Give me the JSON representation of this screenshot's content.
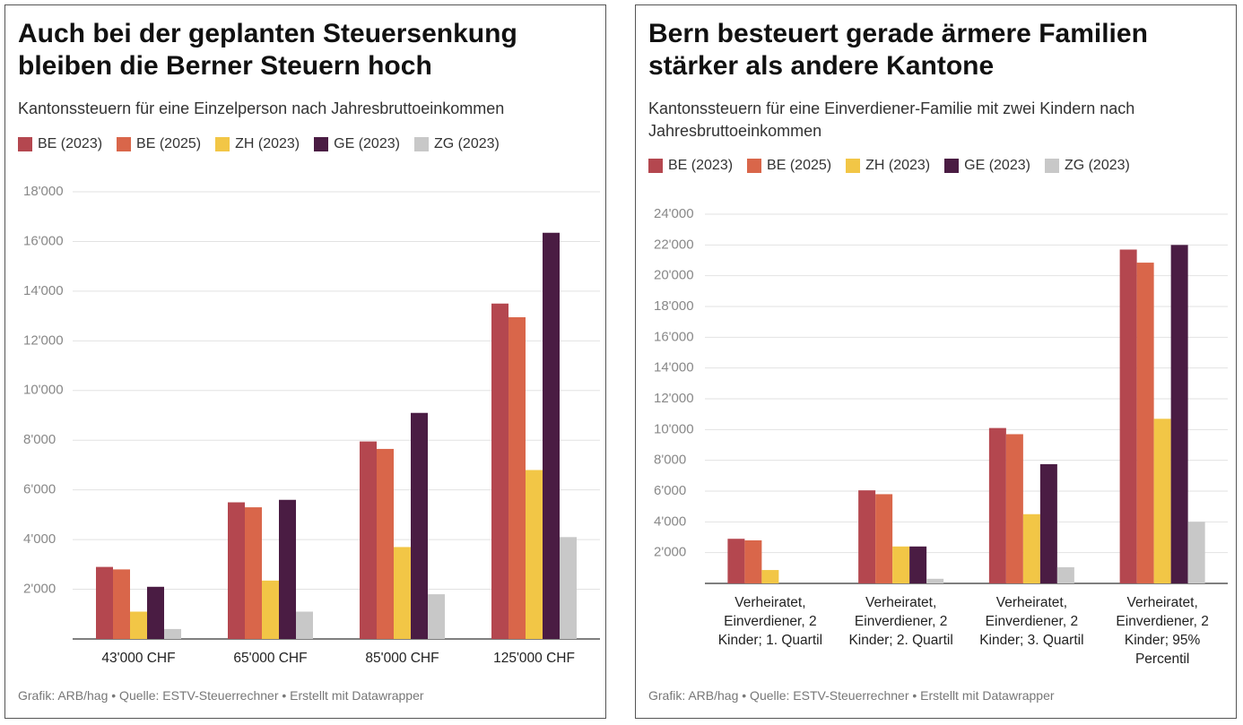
{
  "chart_data": [
    {
      "type": "bar",
      "title": "Auch bei der geplanten Steuersenkung bleiben die Berner Steuern hoch",
      "subtitle": "Kantonssteuern für eine Einzelperson nach Jahresbruttoeinkommen",
      "categories": [
        "43'000 CHF",
        "65'000 CHF",
        "85'000 CHF",
        "125'000 CHF"
      ],
      "series": [
        {
          "name": "BE (2023)",
          "color": "#b4474f",
          "values": [
            2900,
            5500,
            7950,
            13500
          ]
        },
        {
          "name": "BE (2025)",
          "color": "#d9664a",
          "values": [
            2800,
            5300,
            7650,
            12950
          ]
        },
        {
          "name": "ZH (2023)",
          "color": "#f2c646",
          "values": [
            1100,
            2350,
            3700,
            6800
          ]
        },
        {
          "name": "GE (2023)",
          "color": "#4a1c43",
          "values": [
            2100,
            5600,
            9100,
            16350
          ]
        },
        {
          "name": "ZG (2023)",
          "color": "#c8c8c8",
          "values": [
            400,
            1100,
            1800,
            4100
          ]
        }
      ],
      "ylim": [
        0,
        18000
      ],
      "yticks": [
        {
          "value": 2000,
          "label": "2'000"
        },
        {
          "value": 4000,
          "label": "4'000"
        },
        {
          "value": 6000,
          "label": "6'000"
        },
        {
          "value": 8000,
          "label": "8'000"
        },
        {
          "value": 10000,
          "label": "10'000"
        },
        {
          "value": 12000,
          "label": "12'000"
        },
        {
          "value": 14000,
          "label": "14'000"
        },
        {
          "value": 16000,
          "label": "16'000"
        },
        {
          "value": 18000,
          "label": "18'000"
        }
      ],
      "grid": true,
      "footer": "Grafik: ARB/hag • Quelle: ESTV-Steuerrechner • Erstellt mit Datawrapper"
    },
    {
      "type": "bar",
      "title": "Bern besteuert gerade ärmere Familien stärker als andere Kantone",
      "subtitle": "Kantonssteuern für eine Einverdiener-Familie mit zwei Kindern nach Jahresbruttoeinkommen",
      "categories": [
        "Verheiratet, Einverdiener, 2 Kinder; 1. Quartil",
        "Verheiratet, Einverdiener, 2 Kinder; 2. Quartil",
        "Verheiratet, Einverdiener, 2 Kinder; 3. Quartil",
        "Verheiratet, Einverdiener, 2 Kinder; 95% Percentil"
      ],
      "series": [
        {
          "name": "BE (2023)",
          "color": "#b4474f",
          "values": [
            2900,
            6050,
            10100,
            21700
          ]
        },
        {
          "name": "BE (2025)",
          "color": "#d9664a",
          "values": [
            2800,
            5800,
            9700,
            20850
          ]
        },
        {
          "name": "ZH (2023)",
          "color": "#f2c646",
          "values": [
            870,
            2400,
            4500,
            10700
          ]
        },
        {
          "name": "GE (2023)",
          "color": "#4a1c43",
          "values": [
            0,
            2400,
            7750,
            22000
          ]
        },
        {
          "name": "ZG (2023)",
          "color": "#c8c8c8",
          "values": [
            0,
            300,
            1050,
            4000
          ]
        }
      ],
      "ylim": [
        0,
        24000
      ],
      "yticks": [
        {
          "value": 2000,
          "label": "2'000"
        },
        {
          "value": 4000,
          "label": "4'000"
        },
        {
          "value": 6000,
          "label": "6'000"
        },
        {
          "value": 8000,
          "label": "8'000"
        },
        {
          "value": 10000,
          "label": "10'000"
        },
        {
          "value": 12000,
          "label": "12'000"
        },
        {
          "value": 14000,
          "label": "14'000"
        },
        {
          "value": 16000,
          "label": "16'000"
        },
        {
          "value": 18000,
          "label": "18'000"
        },
        {
          "value": 20000,
          "label": "20'000"
        },
        {
          "value": 22000,
          "label": "22'000"
        },
        {
          "value": 24000,
          "label": "24'000"
        }
      ],
      "grid": true,
      "footer": "Grafik: ARB/hag • Quelle: ESTV-Steuerrechner • Erstellt mit Datawrapper"
    }
  ]
}
